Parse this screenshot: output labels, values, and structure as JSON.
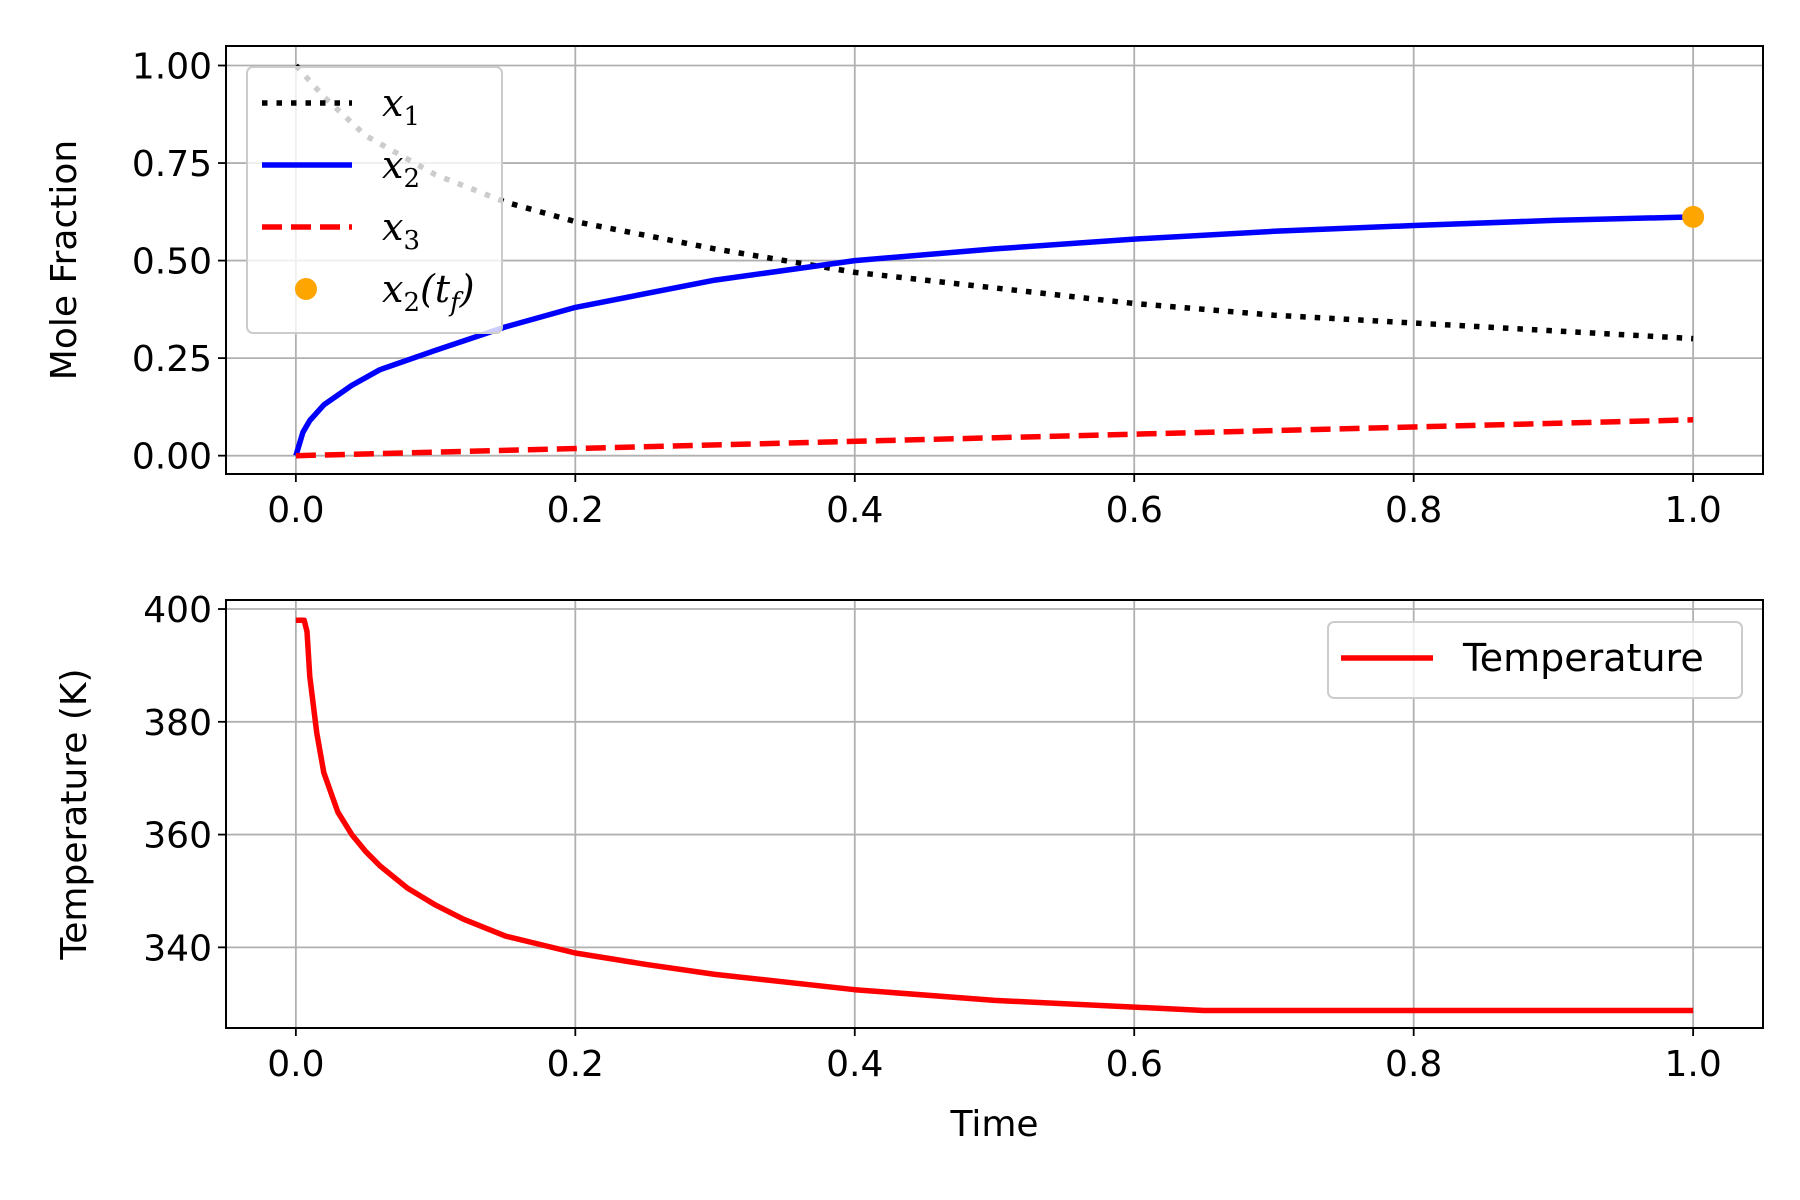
{
  "chart_data": [
    {
      "type": "line",
      "title": "",
      "xlabel": "",
      "ylabel": "Mole Fraction",
      "xlim": [
        -0.05,
        1.05
      ],
      "ylim": [
        -0.047,
        1.05
      ],
      "xticks": [
        "0.0",
        "0.2",
        "0.4",
        "0.6",
        "0.8",
        "1.0"
      ],
      "yticks": [
        "0.00",
        "0.25",
        "0.50",
        "0.75",
        "1.00"
      ],
      "grid": true,
      "legend_position": "upper-left",
      "series": [
        {
          "name": "x1",
          "label_base": "x",
          "label_sub": "1",
          "color": "#000000",
          "style": "dotted",
          "x": [
            0,
            0.02,
            0.05,
            0.1,
            0.15,
            0.2,
            0.3,
            0.4,
            0.5,
            0.6,
            0.7,
            0.8,
            0.9,
            1.0
          ],
          "y": [
            1.0,
            0.92,
            0.82,
            0.72,
            0.65,
            0.6,
            0.53,
            0.47,
            0.43,
            0.39,
            0.36,
            0.34,
            0.32,
            0.3
          ]
        },
        {
          "name": "x2",
          "label_base": "x",
          "label_sub": "2",
          "color": "#0000ff",
          "style": "solid",
          "x": [
            0,
            0.005,
            0.01,
            0.02,
            0.04,
            0.06,
            0.1,
            0.15,
            0.2,
            0.3,
            0.4,
            0.5,
            0.6,
            0.7,
            0.8,
            0.9,
            1.0
          ],
          "y": [
            0,
            0.06,
            0.09,
            0.13,
            0.18,
            0.22,
            0.27,
            0.33,
            0.38,
            0.45,
            0.5,
            0.53,
            0.555,
            0.575,
            0.59,
            0.603,
            0.612
          ]
        },
        {
          "name": "x3",
          "label_base": "x",
          "label_sub": "3",
          "color": "#ff0000",
          "style": "dashed",
          "x": [
            0,
            1.0
          ],
          "y": [
            0,
            0.092
          ]
        },
        {
          "name": "x2(tf)",
          "label_base": "x",
          "label_sub": "2",
          "label_suffix": "(t",
          "label_sub2": "f",
          "label_end": ")",
          "color": "#ffa500",
          "style": "marker",
          "x": [
            1.0
          ],
          "y": [
            0.612
          ]
        }
      ]
    },
    {
      "type": "line",
      "title": "",
      "xlabel": "Time",
      "ylabel": "Temperature (K)",
      "xlim": [
        -0.05,
        1.05
      ],
      "ylim": [
        325.7,
        401.6
      ],
      "xticks": [
        "0.0",
        "0.2",
        "0.4",
        "0.6",
        "0.8",
        "1.0"
      ],
      "yticks": [
        "340",
        "360",
        "380",
        "400"
      ],
      "grid": true,
      "legend_position": "upper-right",
      "series": [
        {
          "name": "Temperature",
          "color": "#ff0000",
          "style": "solid",
          "x": [
            0,
            0.006,
            0.008,
            0.01,
            0.015,
            0.02,
            0.03,
            0.04,
            0.05,
            0.06,
            0.08,
            0.1,
            0.12,
            0.15,
            0.2,
            0.25,
            0.3,
            0.4,
            0.5,
            0.6,
            0.65,
            0.8,
            1.0
          ],
          "y": [
            398,
            398,
            396,
            388,
            378,
            371,
            364,
            360,
            357,
            354.5,
            350.5,
            347.5,
            345,
            342,
            339,
            337,
            335.2,
            332.5,
            330.6,
            329.4,
            328.8,
            328.8,
            328.8
          ]
        }
      ]
    }
  ]
}
